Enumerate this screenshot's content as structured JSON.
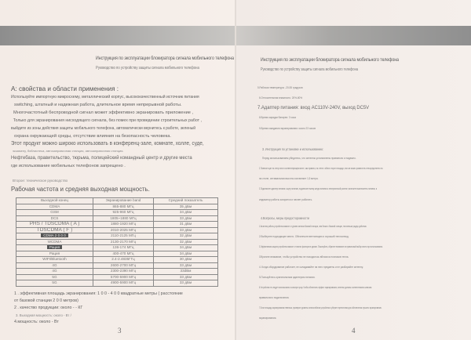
{
  "left_page": {
    "header_title": "Инструкция по эксплуатации блокиратора сигнала мобильного телефона",
    "header_subtitle": "Руководство по устройству защиты сигнала мобильного телефона",
    "section_a": "A: свойства и области применения :",
    "paragraphs": [
      "Используйте импортную микросхему, металлический корпус, высококачественный источник питания",
      "switching, штатный и надежная работа, длительное время непрерывной работы.",
      "Многочастотный беспроводной сигнал может эффективно экранировать приложение ,",
      "Только для экранирования нисходящего сигнала, без помех при проведении строительных работ ,",
      "выйдите из зоны действия защиты мобильного телефона, автоматически вернитесь к работе, зеленый",
      "охрана окружающей среды, отсутствие влияния на безопасность человека.",
      "Этот продукт можно широко использовать в конференц-зале, комнате, холле, суде,",
      "экзамену, библиотека, автозаправочная станция, автозаправочная станция.",
      "Нефтебаза, правительство, тюрьма, полицейский командный центр и другие места",
      "где использование мобильных телефонов запрещено ."
    ],
    "section_b": "Второе: техническое руководство",
    "table_title": "Рабочая частота и средняя выходная мощность.",
    "table": {
      "headers": [
        "Выходной конец",
        "Экранирование band",
        "Средний показатель"
      ],
      "rows": [
        [
          "CDMA",
          "865-880 МГц",
          "35 дБм"
        ],
        [
          "GSM",
          "925-960 МГц",
          "34 дБм"
        ],
        [
          "DCS",
          "1805~1880 МГц",
          "33 дБм"
        ],
        [
          "PHS / TDSCDMA ( A )",
          "1880-1920 МГц",
          "31 дБм"
        ],
        [
          "TDSCDMA ( F )",
          "2010-2025 МГц",
          "33 дБм"
        ],
        [
          "CDMA 2 0 0 0",
          "2110-2125 МГц",
          "32 дБм"
        ],
        [
          "WCDMA",
          "2130-2170 МГц",
          "32 дБм"
        ],
        [
          "Рация",
          "136-174 МГц",
          "34 дБм"
        ],
        [
          "Рация",
          "400-470 МГц",
          "34 дБм"
        ],
        [
          "WIFI/Bluetooth",
          "2.4-2.4835ГГц",
          "30 дБм"
        ],
        [
          "4G",
          "2600-2700 МГц",
          "33 дБм"
        ],
        [
          "4G",
          "2300-2390 МГц",
          "33dBм"
        ],
        [
          "5G",
          "5700-5900 МГц",
          "33 дБм"
        ],
        [
          "5G",
          "4900-5900 МГц",
          "33 дБм"
        ]
      ]
    },
    "notes": [
      "1 . эффективная площадь экранирования: 1 0 0 - 4 0 0 квадратные метры ( расстояние",
      "от базовой станции 2 0 0 метров)",
      "2 . качество продукции: около - - КГ",
      "3. Выходная мощность: около - Вт /",
      "4.мощность: около - Вт"
    ],
    "page_number": "3"
  },
  "right_page": {
    "header_title": "Инструкция по эксплуатации блокиратора сигнала мобильного телефона",
    "header_subtitle": "Руководство по устройству защиты сигнала мобильного телефона",
    "specs": [
      "5.Рабочая температура: -20-55 градусов",
      "6.Относительная влажность: 20%-80%",
      "7.Адаптер питания: вход AC110V-240V, выход DC5V",
      "8.Время зарядки батареи: 3 часа",
      "9.Время ожидания экранирования: около 23 часов"
    ],
    "section_3": "3. Инструкция по установке и использованию:",
    "install": [
      "Перед использованием убедитесь, что антенны установлены правильно и надежно.",
      "2.Повесьте щит на стену или в соответствующем месте, как правило, на стене с обеих сторон площади, или же можно разместить непосредственно на",
      "на столе, оптимальная высота составляет 1,5 метра.",
      "3.Подключите адаптер питания к щиту питания, подключите вилку шнура питания к электрической розетке, включите выключатель питания, и",
      "индикатор работы загорится и начнет работать."
    ],
    "section_4": "4.Вопросы, меры предосторожности",
    "cautions": [
      "1.Качество работы устройства зависит от уровня сигнала базовой станции, чем ближе к базовой станции, тем меньше радиус действия.",
      "2.Выберите подходящее место. Обеспечьте вентиляцию и хороший теплоотвод.",
      "3.Эффективная защита устройства зависит от многих факторов в здании. Пожалуйста, обратите внимание на правильный выбор места при использовании.",
      "Обратите внимание, чтобы устройство не находилось вблизи источников тепла.",
      "4. Когда оборудование работает, не складывайте на него предметы и не разбирайте антенну.",
      "5.Пользуйтесь оригинальным адаптером питания.",
      "6.Устройство не следует использовать в сильную грозу. Чтобы обеспечить эффект экранирования, антенны должны соответствовать каналам.",
      "правильного подключения.",
      "7.Если площадь экранирования невелика, проверьте уровень сигнала вблизи устройства и уберите препятствия для обеспечения лучшего экранирования.",
      "экранирования."
    ],
    "page_number": "4"
  }
}
